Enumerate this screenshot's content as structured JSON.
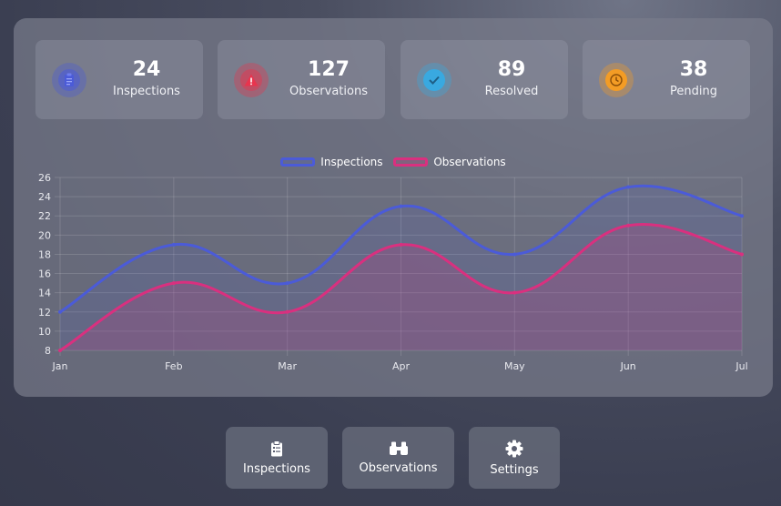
{
  "stats": [
    {
      "value": "24",
      "label": "Inspections",
      "icon": "clipboard-icon",
      "color": "#4b5bd8"
    },
    {
      "value": "127",
      "label": "Observations",
      "icon": "warning-icon",
      "color": "#e8344e"
    },
    {
      "value": "89",
      "label": "Resolved",
      "icon": "check-circle-icon",
      "color": "#39a9e0"
    },
    {
      "value": "38",
      "label": "Pending",
      "icon": "clock-icon",
      "color": "#f39c25"
    }
  ],
  "chart_data": {
    "type": "line",
    "categories": [
      "Jan",
      "Feb",
      "Mar",
      "Apr",
      "May",
      "Jun",
      "Jul"
    ],
    "series": [
      {
        "name": "Inspections",
        "values": [
          12,
          19,
          15,
          23,
          18,
          25,
          22
        ],
        "color": "#4b5bd8"
      },
      {
        "name": "Observations",
        "values": [
          8,
          15,
          12,
          19,
          14,
          21,
          18
        ],
        "color": "#d9307f"
      }
    ],
    "yticks": [
      8,
      10,
      12,
      14,
      16,
      18,
      20,
      22,
      24,
      26
    ],
    "ylim": [
      8,
      26
    ],
    "legend": "top",
    "grid": true,
    "fill": true
  },
  "nav": [
    {
      "label": "Inspections",
      "icon": "clipboard-icon"
    },
    {
      "label": "Observations",
      "icon": "binoculars-icon"
    },
    {
      "label": "Settings",
      "icon": "gear-icon"
    }
  ]
}
